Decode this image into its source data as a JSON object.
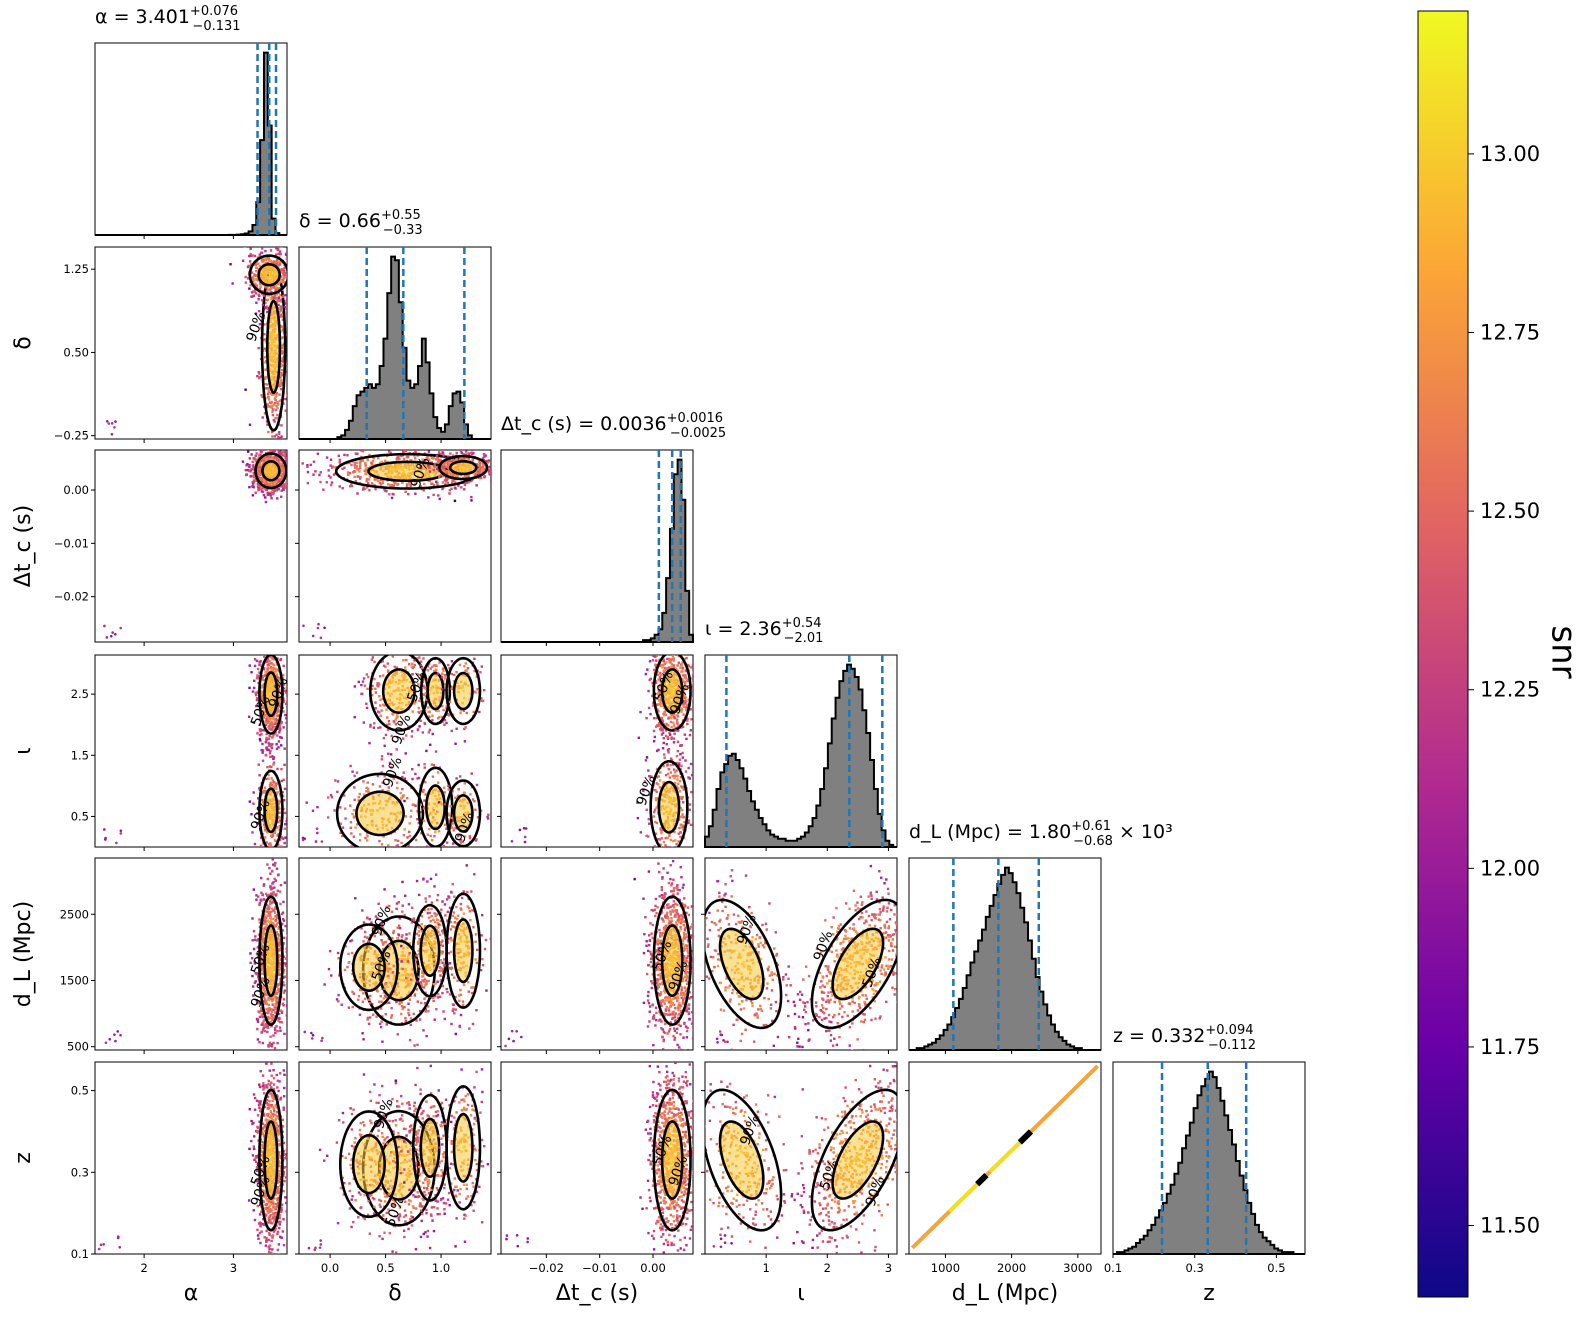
{
  "chart_data": {
    "type": "corner",
    "color_metric": "snr",
    "colorbar": {
      "label": "snr",
      "ticks": [
        "11.50",
        "11.75",
        "12.00",
        "12.25",
        "12.50",
        "12.75",
        "13.00"
      ],
      "range": [
        11.4,
        13.2
      ],
      "colormap": [
        "#0d0887",
        "#6a00a8",
        "#b12a90",
        "#e16462",
        "#fca636",
        "#f0f921"
      ]
    },
    "parameters": [
      {
        "key": "alpha",
        "axis_label": "α",
        "title": {
          "name": "α",
          "value": "3.401",
          "plus": "+0.076",
          "minus": "−0.131",
          "suffix": ""
        },
        "range": [
          1.45,
          3.6
        ],
        "ticks": [
          2,
          3
        ],
        "tick_labels": [
          "2",
          "3"
        ],
        "quantiles": [
          3.27,
          3.401,
          3.477
        ],
        "hist": [
          0,
          0,
          0,
          0,
          0,
          0,
          0,
          0,
          0,
          0,
          0,
          0,
          0,
          0,
          0,
          0,
          0,
          0,
          0,
          0,
          0,
          0,
          0,
          0,
          0,
          0,
          0,
          0,
          0,
          0,
          0,
          0,
          0,
          0,
          0,
          1,
          1,
          2,
          4,
          8,
          20,
          55,
          180,
          520,
          1000,
          600,
          90,
          10,
          0,
          0
        ]
      },
      {
        "key": "delta",
        "axis_label": "δ",
        "title": {
          "name": "δ",
          "value": "0.66",
          "plus": "+0.55",
          "minus": "−0.33",
          "suffix": ""
        },
        "range": [
          -0.28,
          1.45
        ],
        "ticks": [
          0.0,
          0.5,
          1.0
        ],
        "tick_labels": [
          "0.0",
          "0.5",
          "1.0"
        ],
        "ticks_y": [
          -0.25,
          0.5,
          1.25
        ],
        "tick_labels_y": [
          "−0.25",
          "0.50",
          "1.25"
        ],
        "quantiles": [
          0.33,
          0.66,
          1.21
        ],
        "hist": [
          0,
          0,
          0,
          0,
          0,
          0,
          0,
          0,
          0,
          0,
          1,
          2,
          5,
          10,
          18,
          24,
          26,
          28,
          30,
          28,
          30,
          40,
          55,
          80,
          100,
          98,
          75,
          50,
          32,
          28,
          30,
          40,
          55,
          42,
          25,
          12,
          6,
          4,
          8,
          18,
          25,
          26,
          20,
          8,
          2,
          0,
          0,
          0,
          0,
          0
        ]
      },
      {
        "key": "dtc",
        "axis_label": "Δt_c (s)",
        "title": {
          "name": "Δt_c (s)",
          "value": "0.0036",
          "plus": "+0.0016",
          "minus": "−0.0025",
          "suffix": ""
        },
        "range": [
          -0.0285,
          0.0075
        ],
        "ticks": [
          -0.02,
          -0.01,
          0.0
        ],
        "tick_labels": [
          "−0.02",
          "−0.01",
          "0.00"
        ],
        "quantiles": [
          0.0011,
          0.0036,
          0.0052
        ],
        "hist": [
          0,
          0,
          0,
          0,
          0,
          0,
          0,
          0,
          0,
          0,
          0,
          0,
          0,
          0,
          0,
          0,
          0,
          0,
          0,
          0,
          0,
          0,
          0,
          0,
          0,
          0,
          0,
          0,
          0,
          0,
          0,
          0,
          0,
          0,
          0,
          0,
          0,
          1,
          1,
          2,
          4,
          7,
          16,
          35,
          62,
          92,
          100,
          78,
          28,
          4
        ]
      },
      {
        "key": "iota",
        "axis_label": "ι",
        "title": {
          "name": "ι",
          "value": "2.36",
          "plus": "+0.54",
          "minus": "−2.01",
          "suffix": ""
        },
        "range": [
          0.0,
          3.14
        ],
        "ticks": [
          1,
          2,
          3
        ],
        "tick_labels": [
          "1",
          "2",
          "3"
        ],
        "ticks_y": [
          0.5,
          1.5,
          2.5
        ],
        "tick_labels_y": [
          "0.5",
          "1.5",
          "2.5"
        ],
        "quantiles": [
          0.35,
          2.36,
          2.9
        ],
        "hist": [
          5,
          10,
          18,
          28,
          36,
          40,
          44,
          45,
          42,
          38,
          33,
          27,
          22,
          18,
          14,
          11,
          8,
          6,
          5,
          4,
          4,
          3,
          3,
          3,
          4,
          5,
          7,
          10,
          14,
          20,
          28,
          38,
          50,
          62,
          72,
          80,
          85,
          88,
          86,
          82,
          76,
          66,
          55,
          42,
          28,
          16,
          8,
          3,
          1,
          0
        ]
      },
      {
        "key": "dL",
        "axis_label": "d_L (Mpc)",
        "title": {
          "name": "d_L (Mpc)",
          "value": "1.80",
          "plus": "+0.61",
          "minus": "−0.68",
          "suffix": "× 10³"
        },
        "range": [
          450,
          3350
        ],
        "ticks": [
          1000,
          2000,
          3000
        ],
        "tick_labels": [
          "1000",
          "2000",
          "3000"
        ],
        "ticks_y": [
          500,
          1500,
          2500
        ],
        "tick_labels_y": [
          "500",
          "1500",
          "2500"
        ],
        "quantiles": [
          1120,
          1800,
          2410
        ],
        "hist": [
          0,
          0,
          1,
          1,
          2,
          3,
          4,
          6,
          8,
          11,
          14,
          18,
          23,
          28,
          34,
          41,
          48,
          54,
          60,
          66,
          73,
          79,
          85,
          91,
          96,
          100,
          97,
          92,
          86,
          78,
          70,
          60,
          50,
          40,
          32,
          25,
          19,
          14,
          10,
          7,
          5,
          3,
          2,
          1,
          1,
          0,
          0,
          0,
          0,
          0
        ]
      },
      {
        "key": "z",
        "axis_label": "z",
        "title": {
          "name": "z",
          "value": "0.332",
          "plus": "+0.094",
          "minus": "−0.112",
          "suffix": ""
        },
        "range": [
          0.1,
          0.57
        ],
        "ticks": [
          0.1,
          0.3,
          0.5
        ],
        "tick_labels": [
          "0.1",
          "0.3",
          "0.5"
        ],
        "ticks_y": [
          0.1,
          0.3,
          0.5
        ],
        "tick_labels_y": [
          "0.1",
          "0.3",
          "0.5"
        ],
        "quantiles": [
          0.22,
          0.332,
          0.426
        ],
        "hist": [
          0,
          1,
          1,
          2,
          3,
          4,
          6,
          8,
          10,
          13,
          16,
          20,
          24,
          28,
          33,
          38,
          44,
          50,
          58,
          65,
          72,
          80,
          87,
          92,
          96,
          100,
          97,
          91,
          84,
          76,
          68,
          60,
          51,
          43,
          35,
          28,
          22,
          16,
          12,
          9,
          7,
          5,
          3,
          2,
          1,
          1,
          1,
          0,
          0,
          0
        ]
      }
    ],
    "contour_levels": [
      "50%",
      "90%"
    ],
    "pair_panels": [
      {
        "x": "alpha",
        "y": "delta",
        "blobs": [
          {
            "cx": 3.45,
            "cy": 0.55,
            "sx": 0.06,
            "sy": 0.35,
            "w": 0.6
          },
          {
            "cx": 3.4,
            "cy": 1.2,
            "sx": 0.1,
            "sy": 0.08,
            "w": 0.4
          }
        ],
        "labels": [
          {
            "t": "90%",
            "x": 3.3,
            "y": 0.72
          }
        ]
      },
      {
        "x": "alpha",
        "y": "dtc",
        "blobs": [
          {
            "cx": 3.42,
            "cy": 0.0036,
            "sx": 0.08,
            "sy": 0.0015,
            "w": 1
          }
        ],
        "labels": []
      },
      {
        "x": "alpha",
        "y": "iota",
        "blobs": [
          {
            "cx": 3.42,
            "cy": 2.5,
            "sx": 0.06,
            "sy": 0.3,
            "w": 0.65
          },
          {
            "cx": 3.42,
            "cy": 0.6,
            "sx": 0.06,
            "sy": 0.3,
            "w": 0.35
          }
        ],
        "labels": [
          {
            "t": "50%",
            "x": 3.35,
            "y": 2.2
          },
          {
            "t": "90%",
            "x": 3.55,
            "y": 2.5
          },
          {
            "t": "90%",
            "x": 3.35,
            "y": 0.5
          }
        ]
      },
      {
        "x": "alpha",
        "y": "dL",
        "blobs": [
          {
            "cx": 3.42,
            "cy": 1800,
            "sx": 0.06,
            "sy": 450,
            "w": 1
          }
        ],
        "labels": [
          {
            "t": "50%",
            "x": 3.35,
            "y": 1800
          },
          {
            "t": "90%",
            "x": 3.35,
            "y": 1300
          }
        ]
      },
      {
        "x": "alpha",
        "y": "z",
        "blobs": [
          {
            "cx": 3.42,
            "cy": 0.33,
            "sx": 0.06,
            "sy": 0.08,
            "w": 1
          }
        ],
        "labels": [
          {
            "t": "50%",
            "x": 3.35,
            "y": 0.3
          },
          {
            "t": "90%",
            "x": 3.35,
            "y": 0.25
          }
        ]
      },
      {
        "x": "delta",
        "y": "dtc",
        "blobs": [
          {
            "cx": 0.7,
            "cy": 0.0035,
            "sx": 0.3,
            "sy": 0.0015,
            "w": 0.7
          },
          {
            "cx": 1.2,
            "cy": 0.0042,
            "sx": 0.1,
            "sy": 0.001,
            "w": 0.3
          }
        ],
        "labels": [
          {
            "t": "90%",
            "x": 0.85,
            "y": 0.003
          }
        ]
      },
      {
        "x": "delta",
        "y": "iota",
        "blobs": [
          {
            "cx": 0.62,
            "cy": 2.55,
            "sx": 0.12,
            "sy": 0.3,
            "w": 0.3
          },
          {
            "cx": 0.95,
            "cy": 2.55,
            "sx": 0.06,
            "sy": 0.25,
            "w": 0.15
          },
          {
            "cx": 1.2,
            "cy": 2.55,
            "sx": 0.07,
            "sy": 0.25,
            "w": 0.1
          },
          {
            "cx": 0.45,
            "cy": 0.55,
            "sx": 0.18,
            "sy": 0.3,
            "w": 0.25
          },
          {
            "cx": 0.95,
            "cy": 0.65,
            "sx": 0.07,
            "sy": 0.3,
            "w": 0.1
          },
          {
            "cx": 1.2,
            "cy": 0.55,
            "sx": 0.07,
            "sy": 0.25,
            "w": 0.1
          }
        ],
        "labels": [
          {
            "t": "50%",
            "x": 0.82,
            "y": 2.6
          },
          {
            "t": "90%",
            "x": 0.68,
            "y": 1.9
          },
          {
            "t": "90%",
            "x": 0.6,
            "y": 1.2
          },
          {
            "t": "90%",
            "x": 1.25,
            "y": 0.3
          }
        ]
      },
      {
        "x": "delta",
        "y": "dL",
        "blobs": [
          {
            "cx": 0.62,
            "cy": 1650,
            "sx": 0.15,
            "sy": 380,
            "w": 0.4
          },
          {
            "cx": 0.9,
            "cy": 1950,
            "sx": 0.07,
            "sy": 320,
            "w": 0.25
          },
          {
            "cx": 1.2,
            "cy": 1950,
            "sx": 0.07,
            "sy": 400,
            "w": 0.2
          },
          {
            "cx": 0.35,
            "cy": 1700,
            "sx": 0.12,
            "sy": 300,
            "w": 0.15
          }
        ],
        "labels": [
          {
            "t": "90%",
            "x": 0.5,
            "y": 2380
          },
          {
            "t": "50%",
            "x": 0.5,
            "y": 1700
          }
        ]
      },
      {
        "x": "delta",
        "y": "z",
        "blobs": [
          {
            "cx": 0.62,
            "cy": 0.31,
            "sx": 0.15,
            "sy": 0.065,
            "w": 0.4
          },
          {
            "cx": 0.9,
            "cy": 0.36,
            "sx": 0.07,
            "sy": 0.06,
            "w": 0.25
          },
          {
            "cx": 1.2,
            "cy": 0.36,
            "sx": 0.07,
            "sy": 0.07,
            "w": 0.2
          },
          {
            "cx": 0.35,
            "cy": 0.32,
            "sx": 0.12,
            "sy": 0.06,
            "w": 0.15
          }
        ],
        "labels": [
          {
            "t": "90%",
            "x": 0.52,
            "y": 0.44
          },
          {
            "t": "50%",
            "x": 0.62,
            "y": 0.2
          }
        ]
      },
      {
        "x": "dtc",
        "y": "iota",
        "blobs": [
          {
            "cx": 0.0036,
            "cy": 2.55,
            "sx": 0.0016,
            "sy": 0.3,
            "w": 0.65
          },
          {
            "cx": 0.003,
            "cy": 0.65,
            "sx": 0.0016,
            "sy": 0.35,
            "w": 0.35
          }
        ],
        "labels": [
          {
            "t": "50%",
            "x": 0.0028,
            "y": 2.6
          },
          {
            "t": "90%",
            "x": 0.0058,
            "y": 2.4
          },
          {
            "t": "90%",
            "x": -0.0005,
            "y": 0.9
          }
        ]
      },
      {
        "x": "dtc",
        "y": "dL",
        "blobs": [
          {
            "cx": 0.0036,
            "cy": 1800,
            "sx": 0.0016,
            "sy": 450,
            "w": 1
          }
        ],
        "labels": [
          {
            "t": "50%",
            "x": 0.0025,
            "y": 1850
          },
          {
            "t": "90%",
            "x": 0.0055,
            "y": 1550
          }
        ]
      },
      {
        "x": "dtc",
        "y": "z",
        "blobs": [
          {
            "cx": 0.0036,
            "cy": 0.33,
            "sx": 0.0016,
            "sy": 0.08,
            "w": 1
          }
        ],
        "labels": [
          {
            "t": "50%",
            "x": 0.0025,
            "y": 0.35
          },
          {
            "t": "90%",
            "x": 0.0055,
            "y": 0.3
          }
        ]
      },
      {
        "x": "iota",
        "y": "dL",
        "blobs": [
          {
            "cx": 0.6,
            "cy": 1750,
            "sx": 0.3,
            "sy": 450,
            "w": 0.35,
            "rho": -0.5
          },
          {
            "cx": 2.5,
            "cy": 1750,
            "sx": 0.35,
            "sy": 450,
            "w": 0.65,
            "rho": 0.6
          }
        ],
        "labels": [
          {
            "t": "90%",
            "x": 0.75,
            "y": 2250
          },
          {
            "t": "90%",
            "x": 2.0,
            "y": 2000
          },
          {
            "t": "50%",
            "x": 2.8,
            "y": 1600
          }
        ]
      },
      {
        "x": "iota",
        "y": "z",
        "blobs": [
          {
            "cx": 0.6,
            "cy": 0.33,
            "sx": 0.3,
            "sy": 0.08,
            "w": 0.35,
            "rho": -0.5
          },
          {
            "cx": 2.5,
            "cy": 0.33,
            "sx": 0.35,
            "sy": 0.08,
            "w": 0.65,
            "rho": 0.6
          }
        ],
        "labels": [
          {
            "t": "90%",
            "x": 0.8,
            "y": 0.4
          },
          {
            "t": "50%",
            "x": 2.1,
            "y": 0.29
          },
          {
            "t": "90%",
            "x": 2.85,
            "y": 0.25
          }
        ]
      },
      {
        "x": "dL",
        "y": "z",
        "type": "line",
        "from": [
          500,
          0.115
        ],
        "to": [
          3300,
          0.56
        ]
      }
    ]
  }
}
